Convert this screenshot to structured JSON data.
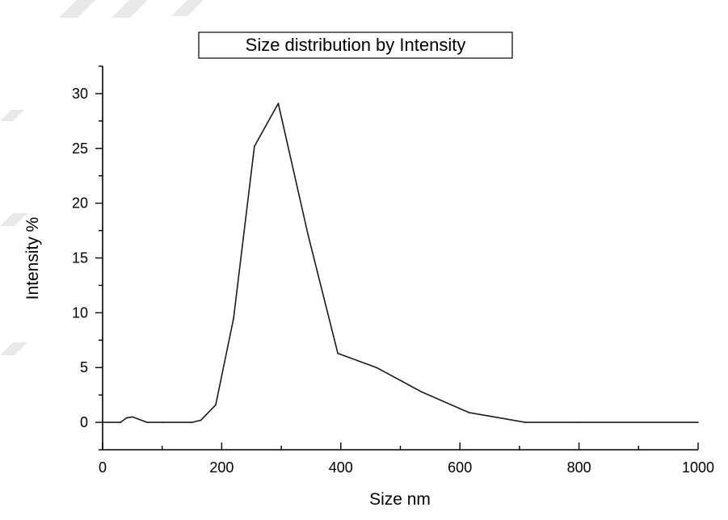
{
  "chart_data": {
    "type": "line",
    "title": "Size distribution by Intensity",
    "xlabel": "Size nm",
    "ylabel": "Intensity %",
    "xlim": [
      0,
      1000
    ],
    "ylim": [
      -2.5,
      32.5
    ],
    "grid": false,
    "x_ticks": [
      0,
      200,
      400,
      600,
      800,
      1000
    ],
    "x_tick_labels": [
      "0",
      "200",
      "400",
      "600",
      "800",
      "1000"
    ],
    "y_ticks": [
      0,
      5,
      10,
      15,
      20,
      25,
      30
    ],
    "y_tick_labels": [
      "0",
      "5",
      "10",
      "15",
      "20",
      "25",
      "30"
    ],
    "line_color": "#1a1a1a",
    "series": [
      {
        "x": [
          0,
          30,
          40,
          50,
          60,
          75,
          100,
          150,
          165,
          190,
          220,
          255,
          295,
          345,
          395,
          460,
          535,
          615,
          710,
          800,
          1000
        ],
        "y": [
          0,
          0,
          0.4,
          0.5,
          0.3,
          0,
          0,
          0,
          0.2,
          1.6,
          9.5,
          25.2,
          29.1,
          17.1,
          6.3,
          5.0,
          2.8,
          0.9,
          0,
          0,
          0
        ]
      }
    ]
  }
}
